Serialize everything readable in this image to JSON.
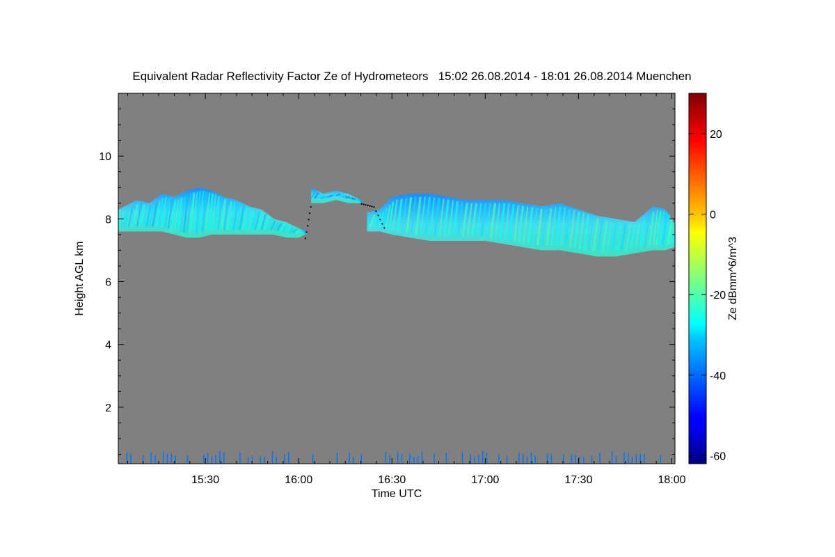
{
  "chart_data": {
    "type": "heatmap",
    "title": "Equivalent Radar Reflectivity Factor Ze of Hydrometeors   15:02 26.08.2014 - 18:01 26.08.2014 Muenchen",
    "xlabel": "Time UTC",
    "ylabel": "Height AGL km",
    "colorbar_label": "Ze dBmm^6/m^3",
    "x_ticks": [
      "15:30",
      "16:00",
      "16:30",
      "17:00",
      "17:30",
      "18:00"
    ],
    "x_tick_minutes": [
      30,
      60,
      90,
      120,
      150,
      180
    ],
    "xlim_minutes": [
      2,
      181
    ],
    "y_ticks": [
      2,
      4,
      6,
      8,
      10
    ],
    "ylim": [
      0.2,
      12
    ],
    "colorbar_ticks": [
      20,
      0,
      -20,
      -40,
      -60
    ],
    "colorbar_range": [
      -62,
      30
    ],
    "background_color": "#808080",
    "colormap": "jet",
    "grid": false,
    "cloud_layers": [
      {
        "name": "",
        "t_start": 2,
        "t_end": 62,
        "profile": [
          [
            2,
            7.6,
            8.3
          ],
          [
            8,
            7.6,
            8.6
          ],
          [
            12,
            7.6,
            8.5
          ],
          [
            16,
            7.6,
            8.8
          ],
          [
            20,
            7.5,
            8.7
          ],
          [
            24,
            7.4,
            8.9
          ],
          [
            28,
            7.4,
            9.0
          ],
          [
            32,
            7.5,
            8.9
          ],
          [
            36,
            7.5,
            8.7
          ],
          [
            40,
            7.5,
            8.6
          ],
          [
            44,
            7.5,
            8.4
          ],
          [
            48,
            7.5,
            8.3
          ],
          [
            52,
            7.5,
            8.0
          ],
          [
            56,
            7.4,
            7.9
          ],
          [
            60,
            7.4,
            7.7
          ],
          [
            62,
            7.5,
            7.6
          ]
        ],
        "peak_dbz": -25
      },
      {
        "name": "",
        "t_start": 64,
        "t_end": 80,
        "profile": [
          [
            64,
            8.5,
            9.0
          ],
          [
            68,
            8.5,
            8.8
          ],
          [
            72,
            8.6,
            8.9
          ],
          [
            76,
            8.5,
            8.8
          ],
          [
            80,
            8.5,
            8.6
          ]
        ],
        "peak_dbz": -30
      },
      {
        "name": "",
        "t_start": 82,
        "t_end": 181,
        "profile": [
          [
            82,
            7.6,
            8.2
          ],
          [
            86,
            7.6,
            8.3
          ],
          [
            90,
            7.5,
            8.7
          ],
          [
            96,
            7.4,
            8.8
          ],
          [
            102,
            7.3,
            8.8
          ],
          [
            108,
            7.3,
            8.7
          ],
          [
            114,
            7.3,
            8.6
          ],
          [
            120,
            7.3,
            8.6
          ],
          [
            126,
            7.2,
            8.6
          ],
          [
            132,
            7.1,
            8.5
          ],
          [
            138,
            7.0,
            8.4
          ],
          [
            144,
            7.0,
            8.5
          ],
          [
            150,
            6.9,
            8.3
          ],
          [
            156,
            6.8,
            8.1
          ],
          [
            162,
            6.8,
            8.0
          ],
          [
            168,
            6.9,
            7.9
          ],
          [
            174,
            7.0,
            8.4
          ],
          [
            178,
            7.0,
            8.3
          ],
          [
            181,
            7.1,
            7.8
          ]
        ],
        "peak_dbz": -22
      }
    ],
    "cloud_base_km": [
      [
        2,
        7.6
      ],
      [
        20,
        7.6
      ],
      [
        30,
        7.6
      ],
      [
        40,
        7.6
      ],
      [
        50,
        7.55
      ],
      [
        62,
        7.4
      ],
      [
        64,
        8.6
      ],
      [
        72,
        8.6
      ],
      [
        80,
        8.5
      ],
      [
        84,
        8.4
      ],
      [
        88,
        7.6
      ],
      [
        96,
        7.45
      ],
      [
        104,
        7.4
      ],
      [
        112,
        7.35
      ],
      [
        120,
        7.3
      ],
      [
        130,
        7.2
      ],
      [
        140,
        7.1
      ],
      [
        150,
        7.0
      ],
      [
        160,
        6.8
      ],
      [
        170,
        6.9
      ],
      [
        181,
        7.0
      ]
    ],
    "low_clutter_dbz": -40
  }
}
